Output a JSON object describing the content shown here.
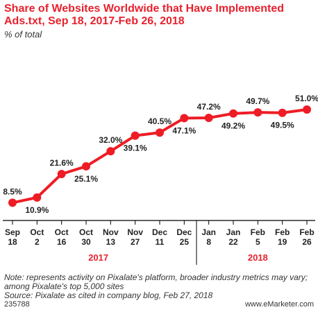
{
  "title": "Share of Websites Worldwide that Have Implemented Ads.txt, Sep 18, 2017-Feb 26, 2018",
  "subtitle": "% of total",
  "note": "Note: represents activity on Pixalate's platform, broader industry metrics may vary; among Pixalate's top 5,000 sites",
  "source": "Source: Pixalate as cited in company blog, Feb 27, 2018",
  "footer": {
    "id": "235788",
    "brand": "www.eMarketer.com"
  },
  "colors": {
    "line": "#ee1c25",
    "title": "#e8212d",
    "year": "#e8212d"
  },
  "chart_data": {
    "type": "line",
    "categories": [
      "Sep 18",
      "Oct 2",
      "Oct 16",
      "Oct 30",
      "Nov 13",
      "Nov 27",
      "Dec 11",
      "Dec 25",
      "Jan 8",
      "Jan 22",
      "Feb 5",
      "Feb 19",
      "Feb 26"
    ],
    "series": [
      {
        "values": [
          8.5,
          10.9,
          21.6,
          25.1,
          32.0,
          39.1,
          40.5,
          47.1,
          47.2,
          49.2,
          49.7,
          49.5,
          51.0
        ]
      }
    ],
    "labels": [
      "8.5%",
      "10.9%",
      "21.6%",
      "25.1%",
      "32.0%",
      "39.1%",
      "40.5%",
      "47.1%",
      "47.2%",
      "49.2%",
      "49.7%",
      "49.5%",
      "51.0%"
    ],
    "year_groups": [
      {
        "label": "2017",
        "start": 0,
        "end": 7
      },
      {
        "label": "2018",
        "start": 8,
        "end": 12
      }
    ],
    "ylim": [
      8,
      51
    ],
    "grid": false
  }
}
